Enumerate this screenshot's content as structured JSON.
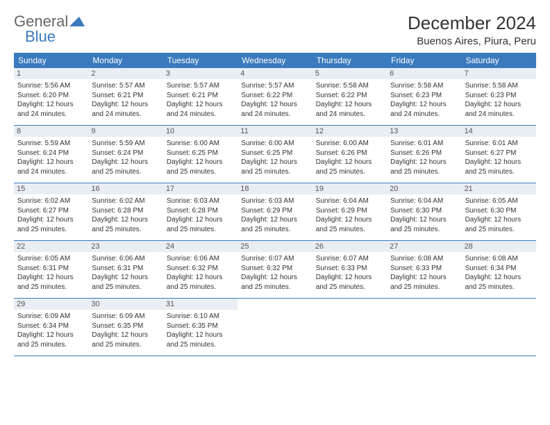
{
  "logo": {
    "text_left": "General",
    "text_right": "Blue",
    "tri_color": "#3a7abd"
  },
  "title": "December 2024",
  "location": "Buenos Aires, Piura, Peru",
  "header_bg": "#3a7abd",
  "daynum_bg": "#e8eef3",
  "row_border": "#3a7abd",
  "weekdays": [
    "Sunday",
    "Monday",
    "Tuesday",
    "Wednesday",
    "Thursday",
    "Friday",
    "Saturday"
  ],
  "weeks": [
    [
      {
        "n": "1",
        "sr": "5:56 AM",
        "ss": "6:20 PM",
        "dl": "12 hours and 24 minutes."
      },
      {
        "n": "2",
        "sr": "5:57 AM",
        "ss": "6:21 PM",
        "dl": "12 hours and 24 minutes."
      },
      {
        "n": "3",
        "sr": "5:57 AM",
        "ss": "6:21 PM",
        "dl": "12 hours and 24 minutes."
      },
      {
        "n": "4",
        "sr": "5:57 AM",
        "ss": "6:22 PM",
        "dl": "12 hours and 24 minutes."
      },
      {
        "n": "5",
        "sr": "5:58 AM",
        "ss": "6:22 PM",
        "dl": "12 hours and 24 minutes."
      },
      {
        "n": "6",
        "sr": "5:58 AM",
        "ss": "6:23 PM",
        "dl": "12 hours and 24 minutes."
      },
      {
        "n": "7",
        "sr": "5:58 AM",
        "ss": "6:23 PM",
        "dl": "12 hours and 24 minutes."
      }
    ],
    [
      {
        "n": "8",
        "sr": "5:59 AM",
        "ss": "6:24 PM",
        "dl": "12 hours and 24 minutes."
      },
      {
        "n": "9",
        "sr": "5:59 AM",
        "ss": "6:24 PM",
        "dl": "12 hours and 25 minutes."
      },
      {
        "n": "10",
        "sr": "6:00 AM",
        "ss": "6:25 PM",
        "dl": "12 hours and 25 minutes."
      },
      {
        "n": "11",
        "sr": "6:00 AM",
        "ss": "6:25 PM",
        "dl": "12 hours and 25 minutes."
      },
      {
        "n": "12",
        "sr": "6:00 AM",
        "ss": "6:26 PM",
        "dl": "12 hours and 25 minutes."
      },
      {
        "n": "13",
        "sr": "6:01 AM",
        "ss": "6:26 PM",
        "dl": "12 hours and 25 minutes."
      },
      {
        "n": "14",
        "sr": "6:01 AM",
        "ss": "6:27 PM",
        "dl": "12 hours and 25 minutes."
      }
    ],
    [
      {
        "n": "15",
        "sr": "6:02 AM",
        "ss": "6:27 PM",
        "dl": "12 hours and 25 minutes."
      },
      {
        "n": "16",
        "sr": "6:02 AM",
        "ss": "6:28 PM",
        "dl": "12 hours and 25 minutes."
      },
      {
        "n": "17",
        "sr": "6:03 AM",
        "ss": "6:28 PM",
        "dl": "12 hours and 25 minutes."
      },
      {
        "n": "18",
        "sr": "6:03 AM",
        "ss": "6:29 PM",
        "dl": "12 hours and 25 minutes."
      },
      {
        "n": "19",
        "sr": "6:04 AM",
        "ss": "6:29 PM",
        "dl": "12 hours and 25 minutes."
      },
      {
        "n": "20",
        "sr": "6:04 AM",
        "ss": "6:30 PM",
        "dl": "12 hours and 25 minutes."
      },
      {
        "n": "21",
        "sr": "6:05 AM",
        "ss": "6:30 PM",
        "dl": "12 hours and 25 minutes."
      }
    ],
    [
      {
        "n": "22",
        "sr": "6:05 AM",
        "ss": "6:31 PM",
        "dl": "12 hours and 25 minutes."
      },
      {
        "n": "23",
        "sr": "6:06 AM",
        "ss": "6:31 PM",
        "dl": "12 hours and 25 minutes."
      },
      {
        "n": "24",
        "sr": "6:06 AM",
        "ss": "6:32 PM",
        "dl": "12 hours and 25 minutes."
      },
      {
        "n": "25",
        "sr": "6:07 AM",
        "ss": "6:32 PM",
        "dl": "12 hours and 25 minutes."
      },
      {
        "n": "26",
        "sr": "6:07 AM",
        "ss": "6:33 PM",
        "dl": "12 hours and 25 minutes."
      },
      {
        "n": "27",
        "sr": "6:08 AM",
        "ss": "6:33 PM",
        "dl": "12 hours and 25 minutes."
      },
      {
        "n": "28",
        "sr": "6:08 AM",
        "ss": "6:34 PM",
        "dl": "12 hours and 25 minutes."
      }
    ],
    [
      {
        "n": "29",
        "sr": "6:09 AM",
        "ss": "6:34 PM",
        "dl": "12 hours and 25 minutes."
      },
      {
        "n": "30",
        "sr": "6:09 AM",
        "ss": "6:35 PM",
        "dl": "12 hours and 25 minutes."
      },
      {
        "n": "31",
        "sr": "6:10 AM",
        "ss": "6:35 PM",
        "dl": "12 hours and 25 minutes."
      },
      null,
      null,
      null,
      null
    ]
  ],
  "labels": {
    "sunrise": "Sunrise:",
    "sunset": "Sunset:",
    "daylight": "Daylight:"
  }
}
